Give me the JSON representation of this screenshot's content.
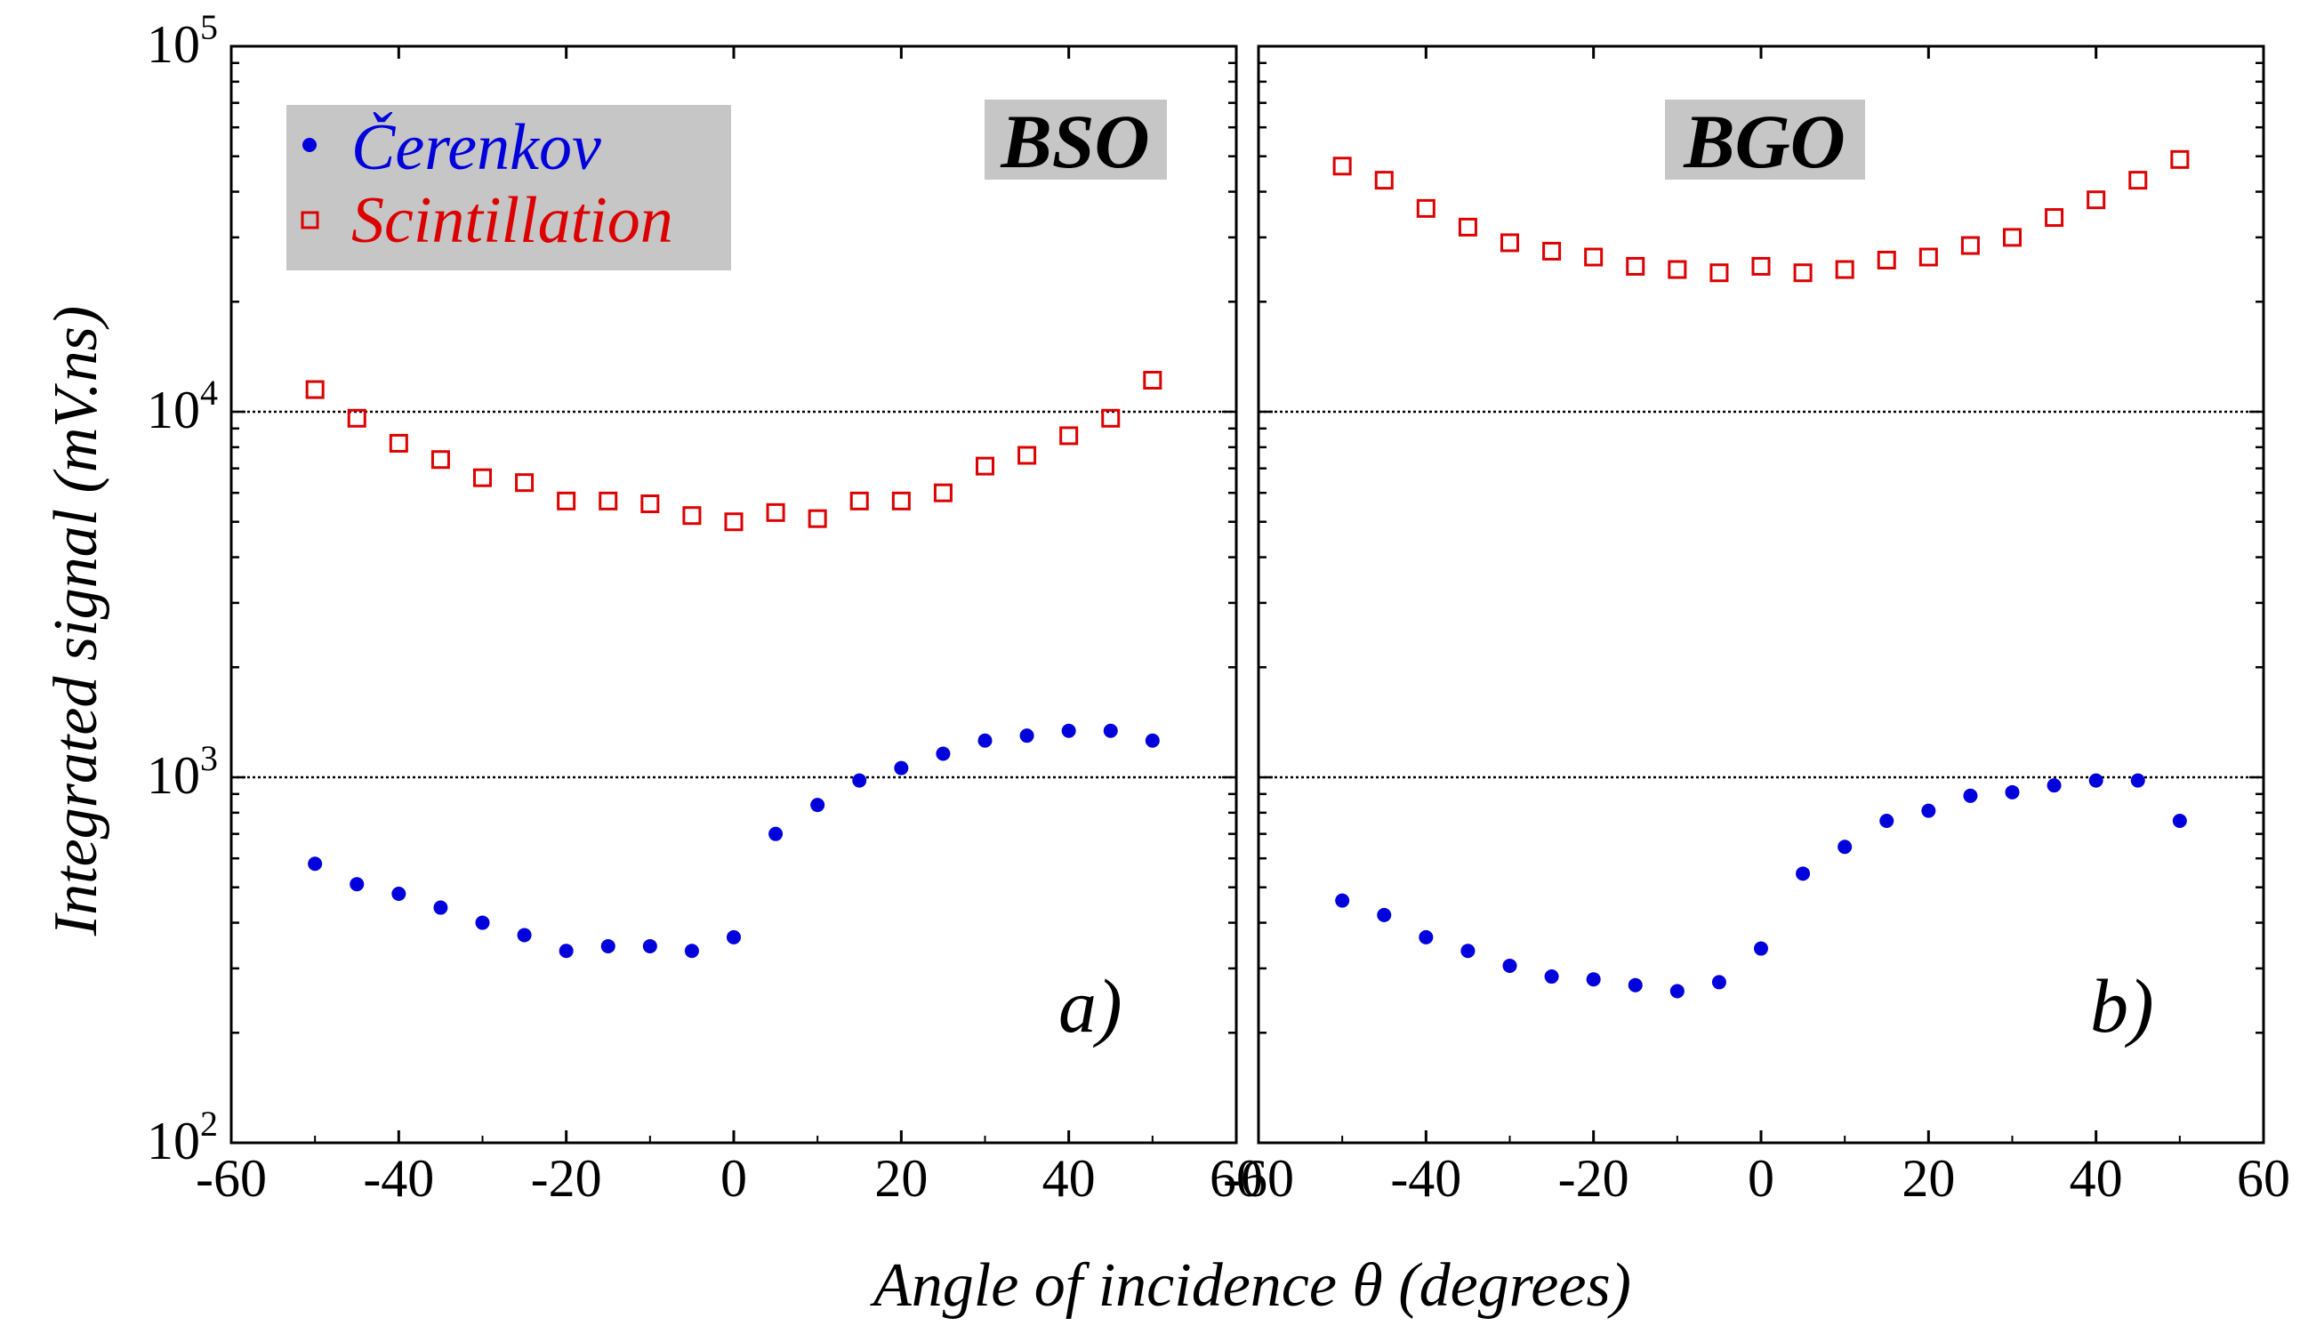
{
  "chart_data": {
    "type": "scatter",
    "ylabel": "Integrated signal (mV.ns)",
    "xlabel": "Angle of incidence θ (degrees)",
    "y_scale": "log",
    "ylim": [
      100,
      100000
    ],
    "xlim": [
      -60,
      60
    ],
    "x_ticks": [
      "-60",
      "-40",
      "-20",
      "0",
      "20",
      "40",
      "60"
    ],
    "y_ticks": [
      {
        "base": "10",
        "exp": "2"
      },
      {
        "base": "10",
        "exp": "3"
      },
      {
        "base": "10",
        "exp": "4"
      },
      {
        "base": "10",
        "exp": "5"
      }
    ],
    "reference_lines": [
      1000,
      10000
    ],
    "legend": {
      "placement": "top-left",
      "entries": [
        {
          "label": "Čerenkov",
          "marker": "filled-circle",
          "color": "#0000dd"
        },
        {
          "label": "Scintillation",
          "marker": "open-square",
          "color": "#dd0000"
        }
      ]
    },
    "panels": [
      {
        "label": "a)",
        "material": "BSO",
        "series": [
          {
            "name": "Čerenkov",
            "x": [
              -50,
              -45,
              -40,
              -35,
              -30,
              -25,
              -20,
              -15,
              -10,
              -5,
              0,
              5,
              10,
              15,
              20,
              25,
              30,
              35,
              40,
              45,
              50
            ],
            "y": [
              580,
              510,
              480,
              440,
              400,
              370,
              335,
              345,
              345,
              335,
              365,
              700,
              840,
              980,
              1060,
              1160,
              1260,
              1300,
              1340,
              1340,
              1260
            ]
          },
          {
            "name": "Scintillation",
            "x": [
              -50,
              -45,
              -40,
              -35,
              -30,
              -25,
              -20,
              -15,
              -10,
              -5,
              0,
              5,
              10,
              15,
              20,
              25,
              30,
              35,
              40,
              45,
              50
            ],
            "y": [
              11500,
              9600,
              8200,
              7400,
              6600,
              6400,
              5700,
              5700,
              5600,
              5200,
              5000,
              5300,
              5100,
              5700,
              5700,
              6000,
              7100,
              7600,
              8600,
              9600,
              12200
            ]
          }
        ]
      },
      {
        "label": "b)",
        "material": "BGO",
        "series": [
          {
            "name": "Čerenkov",
            "x": [
              -50,
              -45,
              -40,
              -35,
              -30,
              -25,
              -20,
              -15,
              -10,
              -5,
              0,
              5,
              10,
              15,
              20,
              25,
              30,
              35,
              40,
              45,
              50
            ],
            "y": [
              460,
              420,
              365,
              335,
              305,
              285,
              280,
              270,
              260,
              275,
              340,
              545,
              645,
              760,
              810,
              890,
              910,
              950,
              980,
              980,
              760
            ]
          },
          {
            "name": "Scintillation",
            "x": [
              -50,
              -45,
              -40,
              -35,
              -30,
              -25,
              -20,
              -15,
              -10,
              -5,
              0,
              5,
              10,
              15,
              20,
              25,
              30,
              35,
              40,
              45,
              50
            ],
            "y": [
              47000,
              43000,
              36000,
              32000,
              29000,
              27500,
              26500,
              25000,
              24500,
              24000,
              25000,
              24000,
              24500,
              26000,
              26500,
              28500,
              30000,
              34000,
              38000,
              43000,
              49000
            ]
          }
        ]
      }
    ]
  }
}
